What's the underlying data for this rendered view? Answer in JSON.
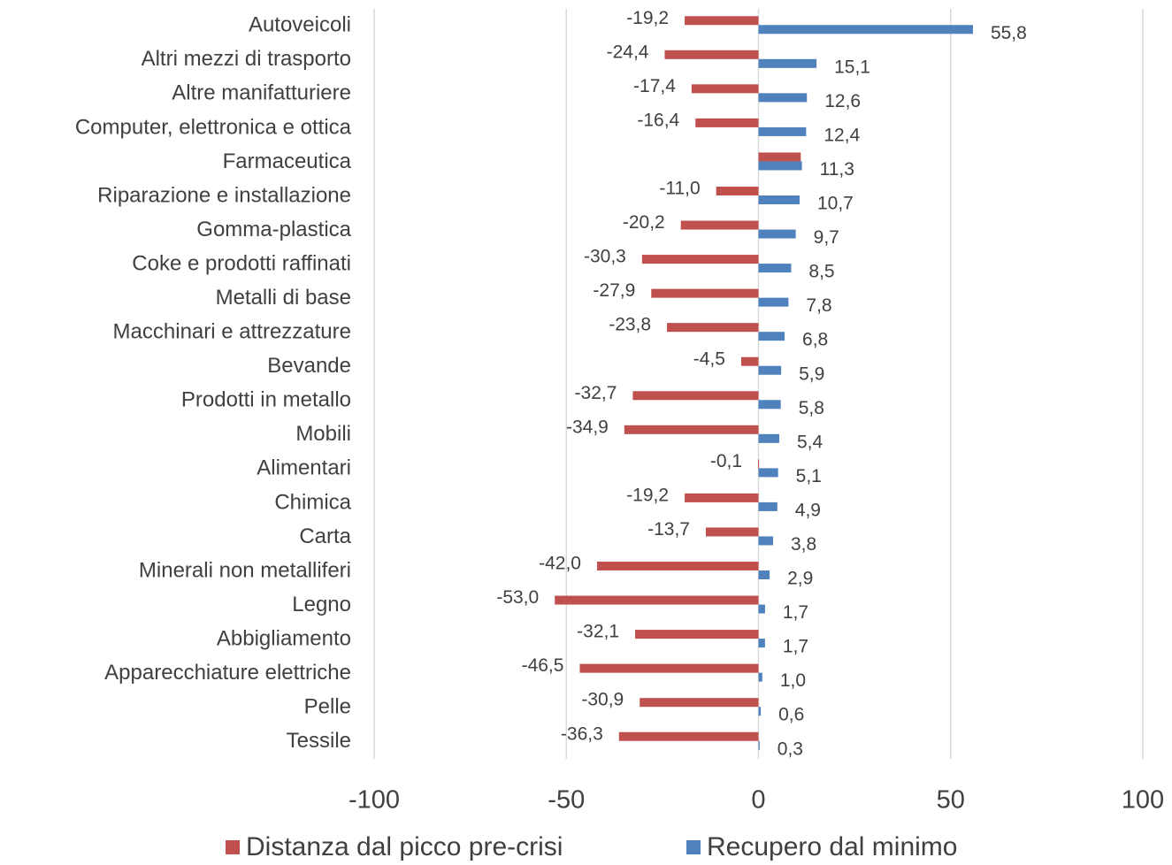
{
  "chart_data": {
    "type": "bar",
    "orientation": "horizontal",
    "categories": [
      "Autoveicoli",
      "Altri mezzi di trasporto",
      "Altre manifatturiere",
      "Computer, elettronica e ottica",
      "Farmaceutica",
      "Riparazione e installazione",
      "Gomma-plastica",
      "Coke e prodotti raffinati",
      "Metalli di base",
      "Macchinari e attrezzature",
      "Bevande",
      "Prodotti in metallo",
      "Mobili",
      "Alimentari",
      "Chimica",
      "Carta",
      "Minerali non metalliferi",
      "Legno",
      "Abbigliamento",
      "Apparecchiature elettriche",
      "Pelle",
      "Tessile"
    ],
    "series": [
      {
        "name": "Distanza dal picco pre-crisi",
        "color": "#c0504d",
        "values": [
          -19.2,
          -24.4,
          -17.4,
          -16.4,
          11.0,
          -11.0,
          -20.2,
          -30.3,
          -27.9,
          -23.8,
          -4.5,
          -32.7,
          -34.9,
          -0.1,
          -19.2,
          -13.7,
          -42.0,
          -53.0,
          -32.1,
          -46.5,
          -30.9,
          -36.3
        ],
        "value_labels": [
          "-19,2",
          "-24,4",
          "-17,4",
          "-16,4",
          null,
          "-11,0",
          "-20,2",
          "-30,3",
          "-27,9",
          "-23,8",
          "-4,5",
          "-32,7",
          "-34,9",
          "-0,1",
          "-19,2",
          "-13,7",
          "-42,0",
          "-53,0",
          "-32,1",
          "-46,5",
          "-30,9",
          "-36,3"
        ]
      },
      {
        "name": "Recupero dal minimo",
        "color": "#4f81bd",
        "values": [
          55.8,
          15.1,
          12.6,
          12.4,
          11.3,
          10.7,
          9.7,
          8.5,
          7.8,
          6.8,
          5.9,
          5.8,
          5.4,
          5.1,
          4.9,
          3.8,
          2.9,
          1.7,
          1.7,
          1.0,
          0.6,
          0.3
        ],
        "value_labels": [
          "55,8",
          "15,1",
          "12,6",
          "12,4",
          "11,3",
          "10,7",
          "9,7",
          "8,5",
          "7,8",
          "6,8",
          "5,9",
          "5,8",
          "5,4",
          "5,1",
          "4,9",
          "3,8",
          "2,9",
          "1,7",
          "1,7",
          "1,0",
          "0,6",
          "0,3"
        ]
      }
    ],
    "xlim": [
      -100,
      100
    ],
    "xticks": [
      -100,
      -50,
      0,
      50,
      100
    ],
    "grid": true,
    "legend": "bottom"
  }
}
